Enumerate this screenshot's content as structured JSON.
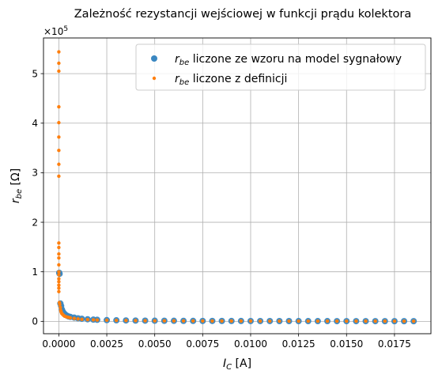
{
  "chart_data": {
    "type": "scatter",
    "title": "Zależność rezystancji wejściowej w funkcji prądu kolektora",
    "xlabel": {
      "var": "I",
      "sub": "C",
      "unit": " [A]"
    },
    "ylabel": {
      "var": "r",
      "sub": "be",
      "unit": " [Ω]"
    },
    "y_offset_text": {
      "base": "×10",
      "exp": "5"
    },
    "xlim": [
      -0.0008,
      0.0194
    ],
    "ylim": [
      -25000,
      572000
    ],
    "x_ticks": [
      {
        "value": 0.0,
        "label": "0.0000"
      },
      {
        "value": 0.0025,
        "label": "0.0025"
      },
      {
        "value": 0.005,
        "label": "0.0050"
      },
      {
        "value": 0.0075,
        "label": "0.0075"
      },
      {
        "value": 0.01,
        "label": "0.0100"
      },
      {
        "value": 0.0125,
        "label": "0.0125"
      },
      {
        "value": 0.015,
        "label": "0.0150"
      },
      {
        "value": 0.0175,
        "label": "0.0175"
      }
    ],
    "y_ticks": [
      {
        "value": 0,
        "label": "0"
      },
      {
        "value": 100000,
        "label": "1"
      },
      {
        "value": 200000,
        "label": "2"
      },
      {
        "value": 300000,
        "label": "3"
      },
      {
        "value": 400000,
        "label": "4"
      },
      {
        "value": 500000,
        "label": "5"
      }
    ],
    "grid": true,
    "legend_position": "top-right",
    "series": [
      {
        "label": {
          "var": "r",
          "sub": "be",
          "text": " liczone ze wzoru na model sygnałowy"
        },
        "color": "#3a87c1",
        "marker": "large-dot",
        "x": [
          2e-05,
          4e-05,
          8e-05,
          0.00012,
          0.00016,
          0.0002,
          0.00025,
          0.0003,
          0.0004,
          0.0005,
          0.0006,
          0.0008,
          0.001,
          0.0012,
          0.0015,
          0.0018,
          0.002,
          0.0025,
          0.003,
          0.0035,
          0.004,
          0.0045,
          0.005,
          0.0055,
          0.006,
          0.0065,
          0.007,
          0.0075,
          0.008,
          0.0085,
          0.009,
          0.0095,
          0.01,
          0.0105,
          0.011,
          0.0115,
          0.012,
          0.0125,
          0.013,
          0.0135,
          0.014,
          0.0145,
          0.015,
          0.0155,
          0.016,
          0.0165,
          0.017,
          0.0175,
          0.018,
          0.0185
        ],
        "y": [
          98000,
          96000,
          36000,
          31000,
          24000,
          20000,
          17000,
          15000,
          12000,
          10000,
          9000,
          7600,
          6200,
          5200,
          4200,
          3500,
          3100,
          2500,
          2100,
          1800,
          1550,
          1400,
          1250,
          1150,
          1050,
          960,
          890,
          830,
          780,
          740,
          700,
          660,
          630,
          600,
          570,
          545,
          520,
          500,
          480,
          465,
          450,
          430,
          415,
          400,
          390,
          380,
          370,
          355,
          345,
          335
        ]
      },
      {
        "label": {
          "var": "r",
          "sub": "be",
          "text": " liczone z definicji"
        },
        "color": "#ff7f0e",
        "marker": "small-dot",
        "x": [
          0.0,
          0.0,
          0.0,
          0.0,
          0.0,
          0.0,
          0.0,
          0.0,
          0.0,
          0.0,
          0.0,
          0.0,
          0.0,
          0.0,
          0.0,
          0.0,
          0.0,
          0.0,
          0.0,
          0.0,
          0.0,
          3e-05,
          5e-05,
          8e-05,
          0.0001,
          0.00012,
          0.00015,
          0.0002,
          0.00025,
          0.0003,
          0.0004,
          0.0005,
          0.0006,
          0.0008,
          0.001,
          0.0012,
          0.0015,
          0.0018,
          0.002,
          0.0025,
          0.003,
          0.0035,
          0.004,
          0.0045,
          0.005,
          0.0055,
          0.006,
          0.0065,
          0.007,
          0.0075,
          0.008,
          0.0085,
          0.009,
          0.0095,
          0.01,
          0.0105,
          0.011,
          0.0115,
          0.012,
          0.0125,
          0.013,
          0.0135,
          0.014,
          0.0145,
          0.015,
          0.0155,
          0.016,
          0.0165,
          0.017,
          0.0175,
          0.018,
          0.0185
        ],
        "y": [
          544000,
          521000,
          505000,
          433000,
          401000,
          372000,
          345000,
          317000,
          293000,
          158000,
          149000,
          136000,
          128000,
          114000,
          100000,
          94000,
          86000,
          80000,
          73000,
          67000,
          60000,
          38000,
          34000,
          28000,
          22000,
          19000,
          16000,
          14000,
          12000,
          10500,
          9000,
          8000,
          7000,
          5800,
          4800,
          4100,
          3500,
          3000,
          2700,
          2200,
          1900,
          1600,
          1400,
          1250,
          1100,
          1000,
          920,
          860,
          800,
          750,
          700,
          660,
          620,
          590,
          560,
          530,
          510,
          490,
          470,
          450,
          435,
          420,
          405,
          390,
          380,
          370,
          360,
          350,
          340,
          330,
          320,
          310
        ]
      }
    ]
  }
}
